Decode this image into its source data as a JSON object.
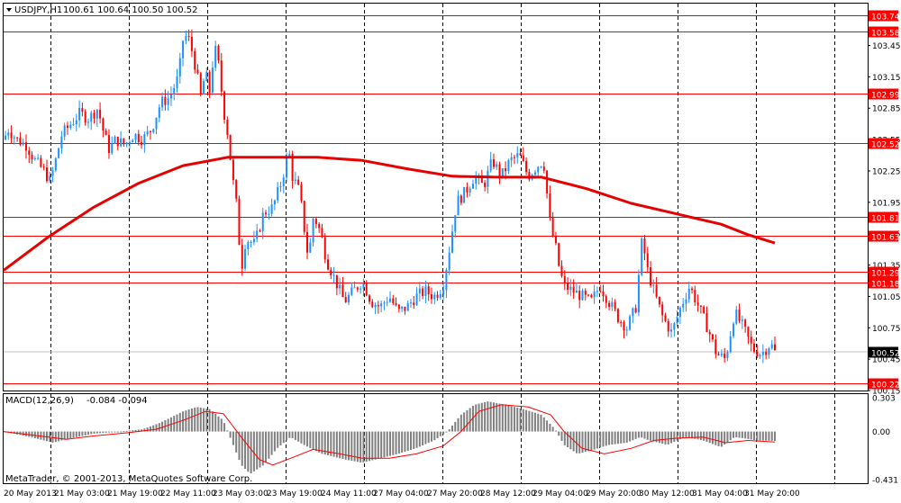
{
  "header": {
    "symbol_label": "USDJPY,H1",
    "ohlc_text": "100.61 100.64 100.50 100.52"
  },
  "macd_panel": {
    "label": "MACD(12,26,9)",
    "values_text": "-0.084 -0.094"
  },
  "copyright": "MetaTrader, © 2001-2013, MetaQuotes Software Corp.",
  "colors": {
    "bull_candle": "#1e90ff",
    "bear_candle": "#ff0000",
    "level_line": "#ff0000",
    "moving_average": "#e60000",
    "macd_histogram": "#808080",
    "macd_signal": "#ff0000",
    "current_price_tag": "#000000"
  },
  "chart_data": [
    {
      "type": "candlestick",
      "symbol": "USDJPY",
      "timeframe": "H1",
      "current_price": 100.52,
      "ylim": [
        100.15,
        103.85
      ],
      "y_ticks": [
        "103.45",
        "103.15",
        "102.85",
        "102.55",
        "102.25",
        "101.95",
        "101.65",
        "101.35",
        "101.05",
        "100.75",
        "100.45",
        "100.15"
      ],
      "x_ticks": [
        "20 May 2013",
        "21 May 03:00",
        "21 May 19:00",
        "22 May 11:00",
        "23 May 03:00",
        "23 May 19:00",
        "24 May 11:00",
        "27 May 04:00",
        "27 May 20:00",
        "28 May 12:00",
        "29 May 04:00",
        "29 May 20:00",
        "30 May 12:00",
        "31 May 04:00",
        "31 May 20:00"
      ],
      "horizontal_levels": [
        "103.74",
        "103.58",
        "102.99",
        "102.52",
        "101.81",
        "101.63",
        "101.29",
        "101.18",
        "100.22"
      ],
      "moving_average_path": [
        [
          0,
          101.3
        ],
        [
          50,
          101.62
        ],
        [
          100,
          101.9
        ],
        [
          150,
          102.13
        ],
        [
          200,
          102.3
        ],
        [
          250,
          102.38
        ],
        [
          300,
          102.38
        ],
        [
          350,
          102.38
        ],
        [
          400,
          102.35
        ],
        [
          450,
          102.27
        ],
        [
          500,
          102.2
        ],
        [
          550,
          102.19
        ],
        [
          600,
          102.19
        ],
        [
          650,
          102.08
        ],
        [
          700,
          101.94
        ],
        [
          750,
          101.84
        ],
        [
          800,
          101.74
        ],
        [
          830,
          101.64
        ],
        [
          860,
          101.56
        ]
      ],
      "price_path": [
        [
          0,
          102.55
        ],
        [
          5,
          102.65
        ],
        [
          15,
          102.55
        ],
        [
          25,
          102.5
        ],
        [
          35,
          102.35
        ],
        [
          45,
          102.25
        ],
        [
          52,
          102.15
        ],
        [
          58,
          102.35
        ],
        [
          65,
          102.6
        ],
        [
          75,
          102.7
        ],
        [
          85,
          102.8
        ],
        [
          95,
          102.75
        ],
        [
          105,
          102.85
        ],
        [
          112,
          102.6
        ],
        [
          118,
          102.45
        ],
        [
          125,
          102.55
        ],
        [
          135,
          102.5
        ],
        [
          145,
          102.6
        ],
        [
          155,
          102.55
        ],
        [
          165,
          102.65
        ],
        [
          175,
          102.9
        ],
        [
          185,
          102.95
        ],
        [
          195,
          103.15
        ],
        [
          200,
          103.5
        ],
        [
          205,
          103.55
        ],
        [
          210,
          103.4
        ],
        [
          215,
          103.2
        ],
        [
          220,
          102.95
        ],
        [
          225,
          103.2
        ],
        [
          230,
          103.0
        ],
        [
          235,
          103.45
        ],
        [
          240,
          103.25
        ],
        [
          245,
          102.85
        ],
        [
          250,
          102.6
        ],
        [
          255,
          102.2
        ],
        [
          260,
          101.9
        ],
        [
          265,
          101.3
        ],
        [
          270,
          101.6
        ],
        [
          280,
          101.55
        ],
        [
          290,
          101.85
        ],
        [
          300,
          101.9
        ],
        [
          310,
          102.15
        ],
        [
          318,
          102.45
        ],
        [
          322,
          102.2
        ],
        [
          330,
          102.05
        ],
        [
          336,
          101.65
        ],
        [
          340,
          101.4
        ],
        [
          345,
          101.8
        ],
        [
          350,
          101.75
        ],
        [
          355,
          101.6
        ],
        [
          360,
          101.4
        ],
        [
          370,
          101.2
        ],
        [
          380,
          101.0
        ],
        [
          390,
          101.1
        ],
        [
          400,
          101.2
        ],
        [
          410,
          101.0
        ],
        [
          420,
          100.95
        ],
        [
          430,
          101.05
        ],
        [
          440,
          100.9
        ],
        [
          450,
          100.95
        ],
        [
          460,
          101.05
        ],
        [
          470,
          101.1
        ],
        [
          480,
          101.05
        ],
        [
          490,
          101.15
        ],
        [
          498,
          101.55
        ],
        [
          505,
          101.95
        ],
        [
          515,
          102.05
        ],
        [
          525,
          102.2
        ],
        [
          535,
          102.1
        ],
        [
          545,
          102.35
        ],
        [
          555,
          102.2
        ],
        [
          565,
          102.35
        ],
        [
          575,
          102.4
        ],
        [
          585,
          102.2
        ],
        [
          595,
          102.3
        ],
        [
          602,
          102.35
        ],
        [
          610,
          101.7
        ],
        [
          615,
          101.55
        ],
        [
          620,
          101.3
        ],
        [
          625,
          101.15
        ],
        [
          635,
          101.1
        ],
        [
          645,
          101.05
        ],
        [
          655,
          101.0
        ],
        [
          665,
          101.15
        ],
        [
          675,
          101.0
        ],
        [
          685,
          100.85
        ],
        [
          695,
          100.75
        ],
        [
          705,
          100.95
        ],
        [
          712,
          101.6
        ],
        [
          718,
          101.3
        ],
        [
          725,
          101.1
        ],
        [
          735,
          100.85
        ],
        [
          745,
          100.7
        ],
        [
          755,
          100.95
        ],
        [
          765,
          101.15
        ],
        [
          775,
          100.95
        ],
        [
          785,
          100.75
        ],
        [
          795,
          100.5
        ],
        [
          805,
          100.45
        ],
        [
          815,
          100.9
        ],
        [
          825,
          100.75
        ],
        [
          835,
          100.55
        ],
        [
          845,
          100.5
        ],
        [
          855,
          100.6
        ],
        [
          860,
          100.52
        ]
      ]
    },
    {
      "type": "bar",
      "name": "MACD(12,26,9)",
      "main_value": -0.084,
      "signal_value": -0.094,
      "ylim": [
        -0.431,
        0.303
      ],
      "y_ticks": [
        "0.303",
        "0.00",
        "-0.431"
      ],
      "histogram_path": [
        [
          0,
          0.0
        ],
        [
          30,
          -0.05
        ],
        [
          55,
          -0.1
        ],
        [
          75,
          -0.06
        ],
        [
          100,
          -0.02
        ],
        [
          130,
          0.0
        ],
        [
          155,
          0.02
        ],
        [
          175,
          0.08
        ],
        [
          200,
          0.18
        ],
        [
          215,
          0.22
        ],
        [
          230,
          0.2
        ],
        [
          245,
          0.1
        ],
        [
          255,
          -0.1
        ],
        [
          265,
          -0.3
        ],
        [
          275,
          -0.38
        ],
        [
          290,
          -0.3
        ],
        [
          305,
          -0.15
        ],
        [
          320,
          -0.05
        ],
        [
          335,
          -0.12
        ],
        [
          355,
          -0.2
        ],
        [
          380,
          -0.25
        ],
        [
          400,
          -0.28
        ],
        [
          420,
          -0.24
        ],
        [
          440,
          -0.2
        ],
        [
          460,
          -0.15
        ],
        [
          480,
          -0.08
        ],
        [
          495,
          0.0
        ],
        [
          510,
          0.15
        ],
        [
          525,
          0.24
        ],
        [
          540,
          0.27
        ],
        [
          560,
          0.24
        ],
        [
          580,
          0.2
        ],
        [
          600,
          0.15
        ],
        [
          615,
          0.02
        ],
        [
          625,
          -0.12
        ],
        [
          640,
          -0.2
        ],
        [
          655,
          -0.17
        ],
        [
          675,
          -0.12
        ],
        [
          695,
          -0.1
        ],
        [
          710,
          -0.05
        ],
        [
          720,
          -0.08
        ],
        [
          740,
          -0.12
        ],
        [
          760,
          -0.05
        ],
        [
          780,
          -0.08
        ],
        [
          800,
          -0.14
        ],
        [
          815,
          -0.05
        ],
        [
          825,
          -0.06
        ],
        [
          840,
          -0.08
        ],
        [
          860,
          -0.084
        ]
      ],
      "signal_path": [
        [
          0,
          0.0
        ],
        [
          40,
          -0.04
        ],
        [
          70,
          -0.07
        ],
        [
          100,
          -0.04
        ],
        [
          140,
          -0.01
        ],
        [
          170,
          0.02
        ],
        [
          200,
          0.1
        ],
        [
          225,
          0.18
        ],
        [
          245,
          0.16
        ],
        [
          265,
          -0.05
        ],
        [
          285,
          -0.25
        ],
        [
          300,
          -0.3
        ],
        [
          320,
          -0.24
        ],
        [
          345,
          -0.16
        ],
        [
          375,
          -0.2
        ],
        [
          400,
          -0.24
        ],
        [
          430,
          -0.24
        ],
        [
          460,
          -0.2
        ],
        [
          490,
          -0.13
        ],
        [
          510,
          0.0
        ],
        [
          530,
          0.18
        ],
        [
          555,
          0.24
        ],
        [
          585,
          0.22
        ],
        [
          610,
          0.15
        ],
        [
          625,
          0.0
        ],
        [
          645,
          -0.15
        ],
        [
          670,
          -0.2
        ],
        [
          700,
          -0.15
        ],
        [
          725,
          -0.08
        ],
        [
          750,
          -0.06
        ],
        [
          780,
          -0.05
        ],
        [
          805,
          -0.1
        ],
        [
          830,
          -0.08
        ],
        [
          860,
          -0.094
        ]
      ]
    }
  ]
}
